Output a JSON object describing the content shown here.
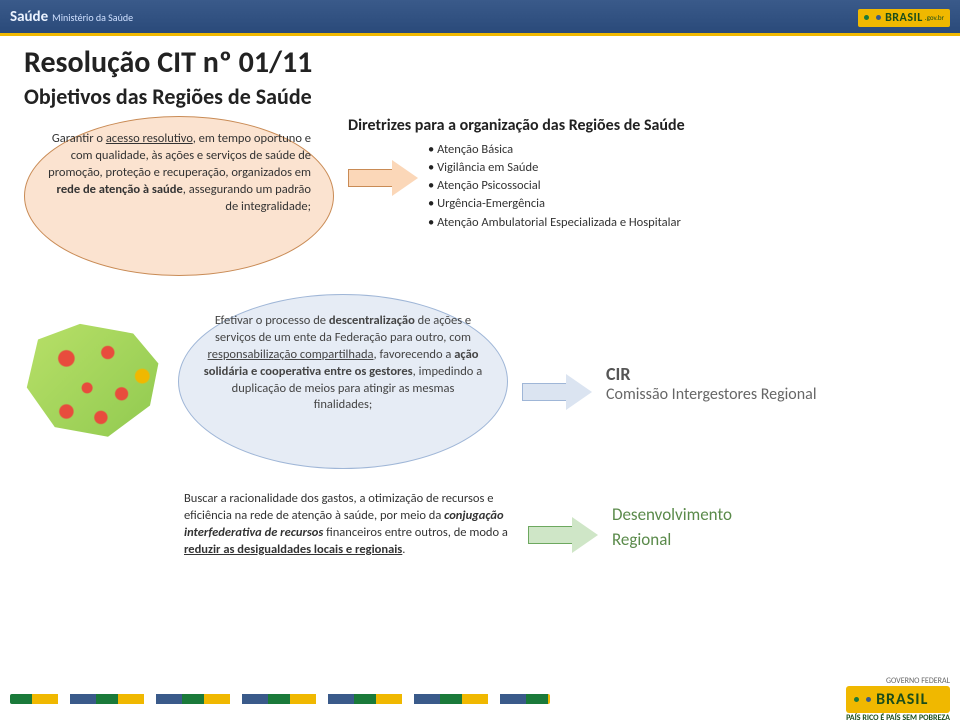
{
  "colors": {
    "header_bg_top": "#3a5a8a",
    "header_bg_bottom": "#2a4a7a",
    "header_border": "#f0b800",
    "peach_fill": "#fbe3d0",
    "peach_border": "#c98b55",
    "blue_fill": "#e6ecf5",
    "blue_border": "#9fb6d7",
    "green_fill": "#cfe6c7",
    "green_border": "#6da85f",
    "text_dark": "#222222",
    "text_body": "#333333",
    "text_muted": "#666666",
    "brasil_yellow": "#f0b800",
    "brasil_green": "#1a4d1a"
  },
  "header": {
    "saude": "Saúde",
    "ministerio": "Ministério da Saúde",
    "logo_text": "BRASIL",
    "gov": ".gov.br"
  },
  "title": "Resolução CIT nº 01/11",
  "subtitle": "Objetivos das Regiões de Saúde",
  "block1": {
    "p1": "Garantir o ",
    "u1": "acesso resolutivo",
    "p2": ", em tempo oportuno e com qualidade, às ações e serviços de saúde de promoção, proteção e recuperação, organizados em ",
    "b1": "rede de atenção à saúde",
    "p3": ", assegurando um padrão de integralidade;"
  },
  "right_head": "Diretrizes para a organização das Regiões de Saúde",
  "bullets": [
    "Atenção Básica",
    "Vigilância em Saúde",
    "Atenção Psicossocial",
    "Urgência-Emergência",
    "Atenção Ambulatorial Especializada e Hospitalar"
  ],
  "block2": {
    "p1": "Efetivar o processo de ",
    "b1": "descentralização",
    "p2": " de ações e serviços de um ente da Federação para outro, com ",
    "u1": "responsabilização compartilhada",
    "p3": ", favorecendo a ",
    "b2": "ação solidária e cooperativa entre os gestores",
    "p4": ", impedindo a duplicação de meios para atingir as mesmas finalidades;"
  },
  "side2": {
    "big": "CIR",
    "small": "Comissão Intergestores Regional"
  },
  "block3": {
    "p1": "Buscar a racionalidade dos gastos, a otimização de recursos e eficiência na rede de atenção à saúde, por meio da ",
    "i1": "conjugação interfederativa de recursos",
    "p2": " financeiros entre outros, de modo a ",
    "u1": "reduzir as desigualdades locais e regionais",
    "p3": "."
  },
  "side3": {
    "line1": "Desenvolvimento",
    "line2": "Regional"
  },
  "footer": {
    "logo_text": "BRASIL",
    "tag": "PAÍS RICO É PAÍS SEM POBREZA",
    "gov": "GOVERNO FEDERAL"
  }
}
